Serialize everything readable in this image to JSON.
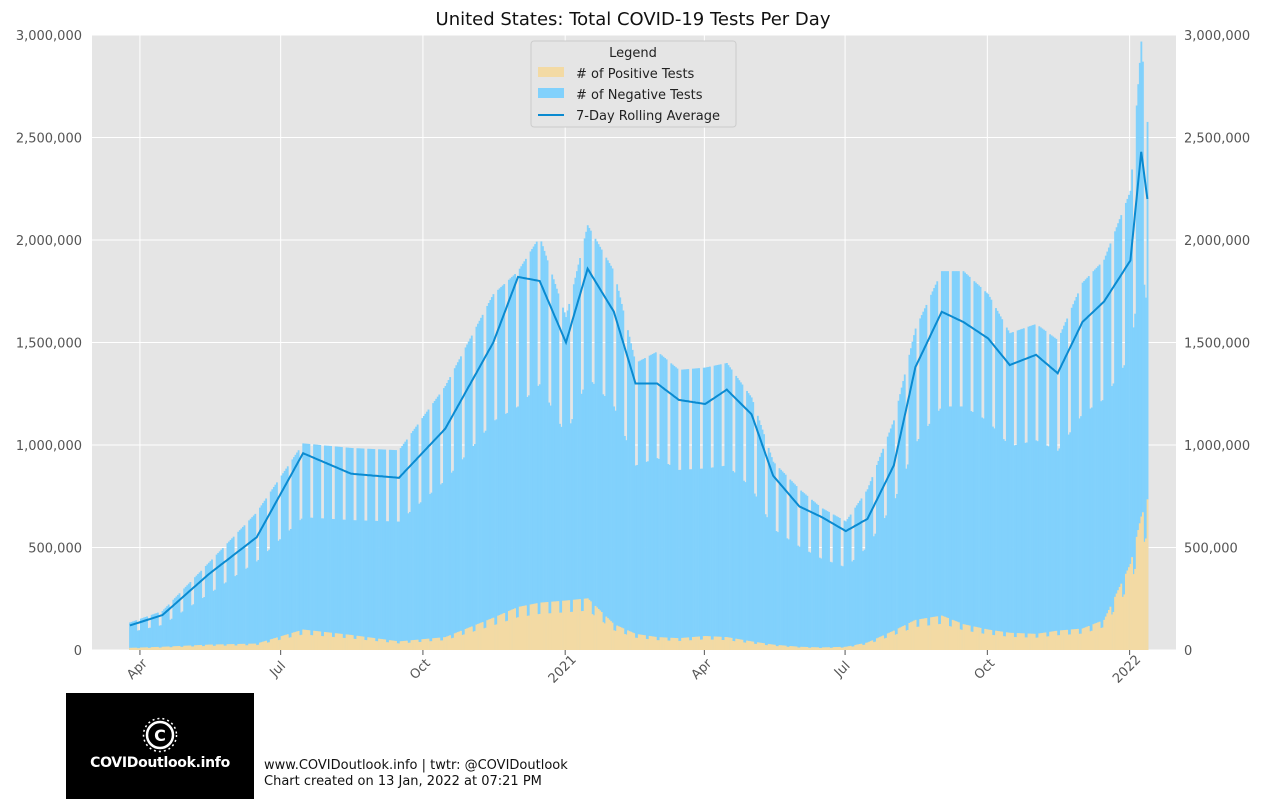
{
  "chart_data": {
    "type": "bar",
    "title": "United States: Total COVID-19 Tests Per Day",
    "xlabel": "",
    "ylabel": "",
    "ylim": [
      0,
      3000000
    ],
    "y_ticks": [
      0,
      500000,
      1000000,
      1500000,
      2000000,
      2500000,
      3000000
    ],
    "y_tick_labels": [
      "0",
      "500,000",
      "1,000,000",
      "1,500,000",
      "2,000,000",
      "2,500,000",
      "3,000,000"
    ],
    "x_range": [
      "2020-03-01",
      "2022-01-31"
    ],
    "x_ticks": [
      "2020-04-01",
      "2020-07-01",
      "2020-10-01",
      "2021-01-01",
      "2021-04-01",
      "2021-07-01",
      "2021-10-01",
      "2022-01-01"
    ],
    "x_tick_labels": [
      "Apr",
      "Jul",
      "Oct",
      "2021",
      "Apr",
      "Jul",
      "Oct",
      "2022"
    ],
    "grid": true,
    "stacked": true,
    "legend": {
      "title": "Legend",
      "placement": "top-center",
      "entries": [
        "# of Positive Tests",
        "# of Negative Tests",
        "7-Day Rolling Average"
      ]
    },
    "colors": {
      "positive": "#f3daa4",
      "negative": "#81d1fc",
      "average": "#0a8ad0",
      "background": "#e5e5e5",
      "grid": "#ffffff"
    },
    "series_samples": {
      "description_dates": [
        "2020-03-25",
        "2020-04-15",
        "2020-05-15",
        "2020-06-15",
        "2020-07-15",
        "2020-08-15",
        "2020-09-15",
        "2020-10-15",
        "2020-11-15",
        "2020-12-01",
        "2020-12-15",
        "2021-01-01",
        "2021-01-15",
        "2021-02-01",
        "2021-02-15",
        "2021-03-01",
        "2021-03-15",
        "2021-04-01",
        "2021-04-15",
        "2021-05-01",
        "2021-05-15",
        "2021-06-01",
        "2021-06-15",
        "2021-07-01",
        "2021-07-15",
        "2021-08-01",
        "2021-08-15",
        "2021-09-01",
        "2021-09-15",
        "2021-10-01",
        "2021-10-15",
        "2021-11-01",
        "2021-11-15",
        "2021-12-01",
        "2021-12-15",
        "2022-01-01",
        "2022-01-08",
        "2022-01-12"
      ],
      "total_tests": [
        120000,
        170000,
        380000,
        600000,
        900000,
        880000,
        870000,
        1150000,
        1550000,
        1650000,
        1800000,
        1450000,
        1850000,
        1650000,
        1250000,
        1300000,
        1220000,
        1230000,
        1250000,
        1100000,
        820000,
        700000,
        620000,
        560000,
        700000,
        1000000,
        1400000,
        1650000,
        1650000,
        1550000,
        1380000,
        1420000,
        1350000,
        1600000,
        1700000,
        2000000,
        2650000,
        2300000
      ],
      "positive_tests": [
        10000,
        15000,
        25000,
        30000,
        95000,
        70000,
        40000,
        60000,
        150000,
        200000,
        220000,
        230000,
        240000,
        120000,
        75000,
        60000,
        55000,
        65000,
        60000,
        40000,
        25000,
        15000,
        12000,
        15000,
        35000,
        90000,
        140000,
        160000,
        120000,
        95000,
        80000,
        75000,
        90000,
        100000,
        140000,
        400000,
        620000,
        700000
      ],
      "rolling_average": [
        120000,
        170000,
        370000,
        550000,
        960000,
        860000,
        840000,
        1080000,
        1500000,
        1820000,
        1800000,
        1500000,
        1860000,
        1650000,
        1300000,
        1300000,
        1220000,
        1200000,
        1270000,
        1150000,
        850000,
        700000,
        650000,
        580000,
        640000,
        900000,
        1380000,
        1650000,
        1600000,
        1520000,
        1390000,
        1440000,
        1350000,
        1600000,
        1700000,
        1900000,
        2430000,
        2200000
      ]
    }
  },
  "footer": {
    "site_line": "www.COVIDoutlook.info | twtr: @COVIDoutlook",
    "created_line": "Chart created on 13 Jan, 2022 at 07:21 PM"
  },
  "logo": {
    "text": "COVIDoutlook.info"
  }
}
